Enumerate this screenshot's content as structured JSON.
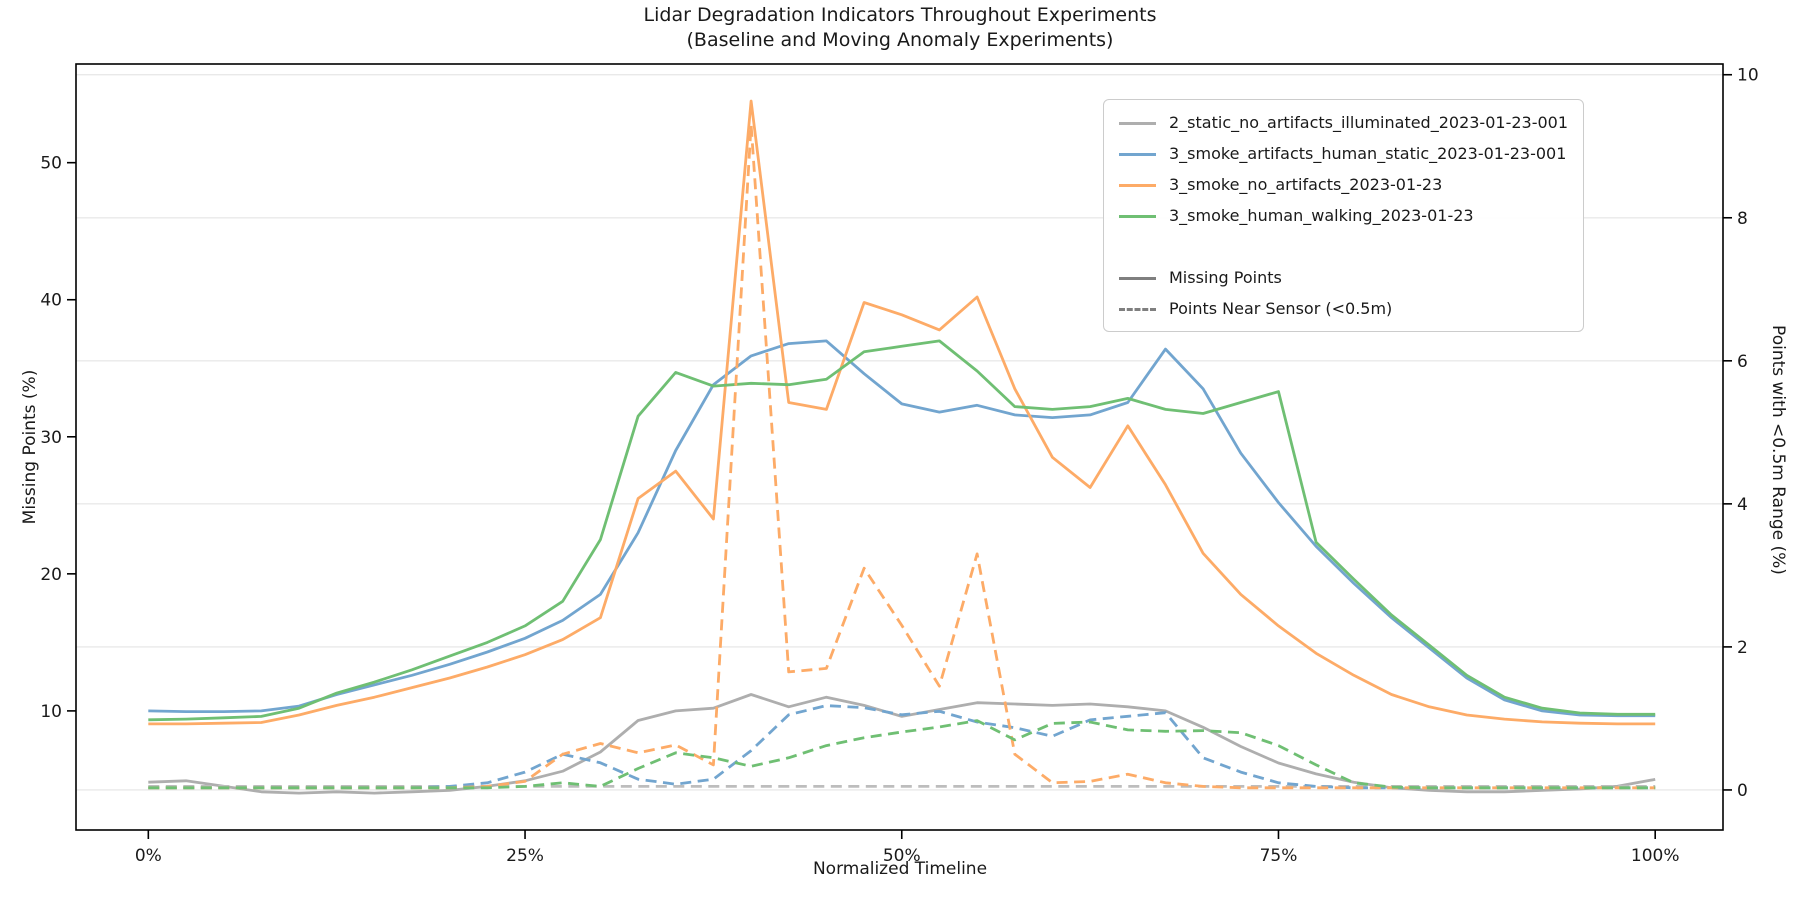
{
  "title": "Lidar Degradation Indicators Throughout Experiments",
  "subtitle": "(Baseline and Moving Anomaly Experiments)",
  "chart_data": {
    "type": "line",
    "title": "Lidar Degradation Indicators Throughout Experiments",
    "subtitle": "(Baseline and Moving Anomaly Experiments)",
    "xlabel": "Normalized Timeline",
    "ylabel_left": "Missing Points (%)",
    "ylabel_right": "Points with <0.5m Range (%)",
    "grid": "horizontal-only",
    "legend_position": "upper right",
    "xlim": [
      -4.8,
      104.5
    ],
    "ylim_left": [
      1.31,
      57.2
    ],
    "ylim_right": [
      -0.56,
      10.15
    ],
    "x_tick_values": [
      0,
      25,
      50,
      75,
      100
    ],
    "x_tick_labels": [
      "0%",
      "25%",
      "50%",
      "75%",
      "100%"
    ],
    "y_left_ticks": [
      10,
      20,
      30,
      40,
      50
    ],
    "y_right_ticks": [
      0,
      2,
      4,
      6,
      8,
      10
    ],
    "x": [
      0,
      2.5,
      5,
      7.5,
      10,
      12.5,
      15,
      17.5,
      20,
      22.5,
      25,
      27.5,
      30,
      32.5,
      35,
      37.5,
      40,
      42.5,
      45,
      47.5,
      50,
      52.5,
      55,
      57.5,
      60,
      62.5,
      65,
      67.5,
      70,
      72.5,
      75,
      77.5,
      80,
      82.5,
      85,
      87.5,
      90,
      92.5,
      95,
      97.5,
      100
    ],
    "series": [
      {
        "run": "2_static_no_artifacts_illuminated_2023-01-23-001",
        "metric": "Missing Points",
        "axis": "left",
        "style": "solid",
        "color": "#aeaeae",
        "values": [
          4.8,
          4.9,
          4.5,
          4.1,
          4.0,
          4.1,
          4.0,
          4.1,
          4.2,
          4.5,
          4.9,
          5.6,
          7.0,
          9.3,
          10.0,
          10.2,
          11.2,
          10.3,
          11.0,
          10.4,
          9.6,
          10.1,
          10.6,
          10.5,
          10.4,
          10.5,
          10.3,
          10.0,
          8.8,
          7.4,
          6.2,
          5.4,
          4.8,
          4.4,
          4.2,
          4.1,
          4.1,
          4.2,
          4.3,
          4.5,
          5.0
        ]
      },
      {
        "run": "3_smoke_artifacts_human_static_2023-01-23-001",
        "metric": "Missing Points",
        "axis": "left",
        "style": "solid",
        "color": "#72a5cf",
        "values": [
          10.0,
          9.95,
          9.95,
          10.0,
          10.35,
          11.2,
          11.9,
          12.6,
          13.4,
          14.3,
          15.3,
          16.6,
          18.5,
          23.0,
          29.0,
          33.8,
          35.9,
          36.8,
          37.0,
          34.6,
          32.4,
          31.8,
          32.3,
          31.6,
          31.4,
          31.6,
          32.5,
          36.4,
          33.5,
          28.8,
          25.2,
          22.0,
          19.3,
          16.8,
          14.6,
          12.4,
          10.8,
          10.0,
          9.7,
          9.65,
          9.65
        ]
      },
      {
        "run": "3_smoke_no_artifacts_2023-01-23",
        "metric": "Missing Points",
        "axis": "left",
        "style": "solid",
        "color": "#fdab67",
        "values": [
          9.05,
          9.05,
          9.1,
          9.15,
          9.7,
          10.4,
          11.0,
          11.7,
          12.4,
          13.2,
          14.1,
          15.2,
          16.8,
          25.5,
          27.5,
          24.0,
          54.5,
          32.5,
          32.0,
          39.8,
          38.9,
          37.8,
          40.2,
          33.5,
          28.5,
          26.3,
          30.8,
          26.5,
          21.5,
          18.5,
          16.2,
          14.2,
          12.6,
          11.2,
          10.3,
          9.7,
          9.4,
          9.2,
          9.1,
          9.05,
          9.05
        ]
      },
      {
        "run": "3_smoke_human_walking_2023-01-23",
        "metric": "Missing Points",
        "axis": "left",
        "style": "solid",
        "color": "#6fbf73",
        "values": [
          9.35,
          9.4,
          9.5,
          9.6,
          10.2,
          11.3,
          12.1,
          13.0,
          14.0,
          15.0,
          16.2,
          18.0,
          22.5,
          31.5,
          34.7,
          33.7,
          33.9,
          33.8,
          34.2,
          36.2,
          36.6,
          37.0,
          34.8,
          32.2,
          32.0,
          32.2,
          32.8,
          32.0,
          31.7,
          32.5,
          33.3,
          22.3,
          19.6,
          17.0,
          14.8,
          12.6,
          11.0,
          10.2,
          9.85,
          9.75,
          9.75
        ]
      },
      {
        "run": "2_static_no_artifacts_illuminated_2023-01-23-001",
        "metric": "Points Near Sensor (<0.5m)",
        "axis": "right",
        "style": "dashed",
        "color": "#bdbdbd",
        "values": [
          0.05,
          0.05,
          0.05,
          0.05,
          0.05,
          0.05,
          0.05,
          0.05,
          0.05,
          0.05,
          0.05,
          0.05,
          0.05,
          0.05,
          0.05,
          0.05,
          0.05,
          0.05,
          0.05,
          0.05,
          0.05,
          0.05,
          0.05,
          0.05,
          0.05,
          0.05,
          0.05,
          0.05,
          0.05,
          0.05,
          0.05,
          0.05,
          0.05,
          0.05,
          0.05,
          0.05,
          0.05,
          0.05,
          0.05,
          0.05,
          0.05
        ]
      },
      {
        "run": "3_smoke_artifacts_human_static_2023-01-23-001",
        "metric": "Points Near Sensor (<0.5m)",
        "axis": "right",
        "style": "dashed",
        "color": "#72a5cf",
        "values": [
          0.03,
          0.03,
          0.03,
          0.03,
          0.03,
          0.03,
          0.03,
          0.03,
          0.05,
          0.1,
          0.25,
          0.5,
          0.38,
          0.15,
          0.08,
          0.15,
          0.55,
          1.05,
          1.18,
          1.15,
          1.05,
          1.1,
          0.95,
          0.87,
          0.75,
          0.98,
          1.03,
          1.08,
          0.45,
          0.25,
          0.1,
          0.05,
          0.03,
          0.03,
          0.03,
          0.03,
          0.03,
          0.03,
          0.03,
          0.03,
          0.03
        ]
      },
      {
        "run": "3_smoke_no_artifacts_2023-01-23",
        "metric": "Points Near Sensor (<0.5m)",
        "axis": "right",
        "style": "dashed",
        "color": "#fdab67",
        "values": [
          0.03,
          0.03,
          0.03,
          0.03,
          0.03,
          0.03,
          0.03,
          0.03,
          0.03,
          0.05,
          0.12,
          0.5,
          0.65,
          0.52,
          0.63,
          0.35,
          9.3,
          1.65,
          1.7,
          3.1,
          2.3,
          1.45,
          3.3,
          0.5,
          0.1,
          0.12,
          0.22,
          0.1,
          0.05,
          0.03,
          0.03,
          0.03,
          0.03,
          0.03,
          0.03,
          0.03,
          0.03,
          0.03,
          0.03,
          0.03,
          0.03
        ]
      },
      {
        "run": "3_smoke_human_walking_2023-01-23",
        "metric": "Points Near Sensor (<0.5m)",
        "axis": "right",
        "style": "dashed",
        "color": "#6fbf73",
        "values": [
          0.03,
          0.03,
          0.03,
          0.03,
          0.03,
          0.03,
          0.03,
          0.03,
          0.03,
          0.03,
          0.05,
          0.1,
          0.05,
          0.3,
          0.52,
          0.45,
          0.33,
          0.45,
          0.62,
          0.73,
          0.81,
          0.88,
          0.97,
          0.7,
          0.93,
          0.95,
          0.84,
          0.82,
          0.83,
          0.8,
          0.62,
          0.35,
          0.1,
          0.04,
          0.03,
          0.03,
          0.03,
          0.03,
          0.03,
          0.03,
          0.03
        ]
      }
    ],
    "legend": {
      "series_entries": [
        {
          "label": "2_static_no_artifacts_illuminated_2023-01-23-001",
          "color": "#aeaeae"
        },
        {
          "label": "3_smoke_artifacts_human_static_2023-01-23-001",
          "color": "#72a5cf"
        },
        {
          "label": "3_smoke_no_artifacts_2023-01-23",
          "color": "#fdab67"
        },
        {
          "label": "3_smoke_human_walking_2023-01-23",
          "color": "#6fbf73"
        }
      ],
      "style_entries": [
        {
          "label": "Missing Points",
          "dashed": false,
          "color": "#7f7f7f"
        },
        {
          "label": "Points Near Sensor (<0.5m)",
          "dashed": true,
          "color": "#7f7f7f"
        }
      ]
    },
    "colors": {
      "grid": "#e9e9e9",
      "spine": "#000000",
      "text": "#1a1a1a"
    }
  }
}
